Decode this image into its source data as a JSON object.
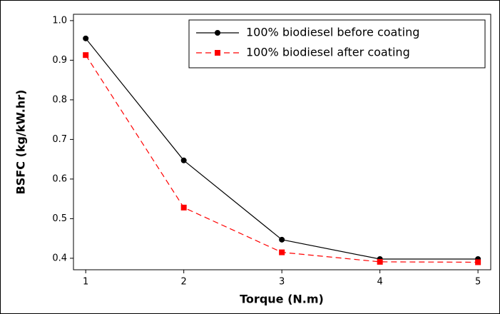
{
  "chart_data": {
    "type": "line",
    "xlabel": "Torque (N.m)",
    "ylabel": "BSFC (kg/kW.hr)",
    "x": [
      1,
      2,
      3,
      4,
      5
    ],
    "series": [
      {
        "name": "100% biodiesel before coating",
        "color": "#000000",
        "values": [
          0.955,
          0.647,
          0.447,
          0.398,
          0.398
        ]
      },
      {
        "name": "100% biodiesel after coating",
        "color": "#ff0000",
        "values": [
          0.913,
          0.528,
          0.415,
          0.391,
          0.39
        ]
      }
    ],
    "xlim": [
      0.875,
      5.13
    ],
    "xticks": [
      1,
      2,
      3,
      4,
      5
    ],
    "ylim": [
      0.371,
      1.016
    ],
    "yticks": [
      0.4,
      0.5,
      0.6,
      0.7,
      0.8,
      0.9,
      {
        "value": 1,
        "label": "1.0"
      }
    ],
    "legend": "upper right"
  }
}
